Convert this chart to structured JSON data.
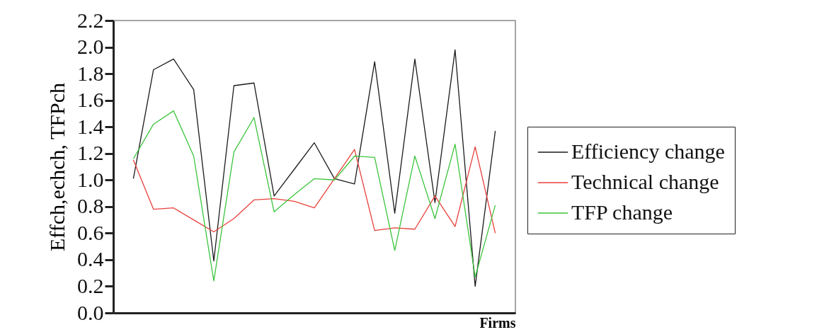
{
  "chart_data": {
    "type": "line",
    "xlabel": "Firms",
    "ylabel": "Effch,echch, TFPch",
    "categories": [
      null,
      null,
      null,
      null,
      null,
      null,
      null,
      null,
      null,
      null,
      null,
      null,
      null,
      null,
      null,
      null,
      null,
      null,
      null
    ],
    "series": [
      {
        "name": "Efficiency change",
        "color": "#1a1a1a",
        "values": [
          1.01,
          1.83,
          1.91,
          1.68,
          0.39,
          1.71,
          1.73,
          0.88,
          1.08,
          1.28,
          1.01,
          0.97,
          1.89,
          0.75,
          1.91,
          0.83,
          1.98,
          0.2,
          1.37
        ]
      },
      {
        "name": "Technical change",
        "color": "#e8413c",
        "values": [
          1.15,
          0.78,
          0.79,
          0.7,
          0.61,
          0.71,
          0.85,
          0.86,
          0.84,
          0.79,
          1.01,
          1.23,
          0.62,
          0.64,
          0.63,
          0.88,
          0.65,
          1.25,
          0.6
        ]
      },
      {
        "name": "TFP change",
        "color": "#3cc43c",
        "values": [
          1.16,
          1.42,
          1.52,
          1.18,
          0.24,
          1.21,
          1.47,
          0.76,
          0.89,
          1.01,
          1.0,
          1.18,
          1.17,
          0.47,
          1.18,
          0.71,
          1.27,
          0.27,
          0.81
        ]
      }
    ],
    "ylim": [
      0,
      2.2
    ],
    "yticks": [
      {
        "value": 0,
        "label": "0.0"
      },
      {
        "value": 0.2,
        "label": "0.2"
      },
      {
        "value": 0.4,
        "label": "0.4"
      },
      {
        "value": 0.6,
        "label": "0.6"
      },
      {
        "value": 0.8,
        "label": "0.8"
      },
      {
        "value": 1,
        "label": "1.0"
      },
      {
        "value": 1.2,
        "label": "1.2"
      },
      {
        "value": 1.4,
        "label": "1.4"
      },
      {
        "value": 1.6,
        "label": "1.6"
      },
      {
        "value": 1.8,
        "label": "1.8"
      },
      {
        "value": 2,
        "label": "2.0"
      },
      {
        "value": 2.2,
        "label": "2.2"
      }
    ],
    "tick_labels": "y",
    "legend": "right",
    "grid": false,
    "line_style": "solid"
  }
}
